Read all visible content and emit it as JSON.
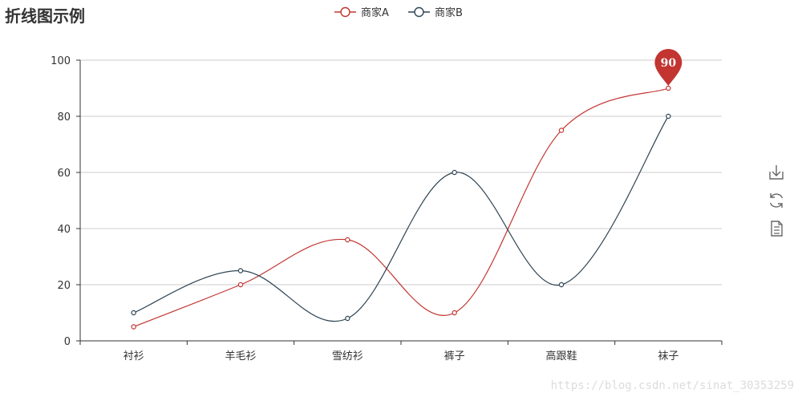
{
  "chart_data": {
    "type": "line",
    "title": "折线图示例",
    "categories": [
      "衬衫",
      "羊毛衫",
      "雪纺衫",
      "裤子",
      "高跟鞋",
      "袜子"
    ],
    "series": [
      {
        "name": "商家A",
        "values": [
          5,
          20,
          36,
          10,
          75,
          90
        ],
        "color": "#c23531"
      },
      {
        "name": "商家B",
        "values": [
          10,
          25,
          8,
          60,
          20,
          80
        ],
        "color": "#2f4554"
      }
    ],
    "ylim": [
      0,
      100
    ],
    "yticks": [
      0,
      20,
      40,
      60,
      80,
      100
    ],
    "grid": true,
    "smooth": true,
    "legend_position": "top-center",
    "mark_point": {
      "series": "商家A",
      "category": "袜子",
      "value": 90,
      "label": "90"
    }
  },
  "toolbox": {
    "items": [
      {
        "name": "save-as-image-icon"
      },
      {
        "name": "restore-icon"
      },
      {
        "name": "data-view-icon"
      }
    ]
  },
  "watermark": "https://blog.csdn.net/sinat_30353259"
}
